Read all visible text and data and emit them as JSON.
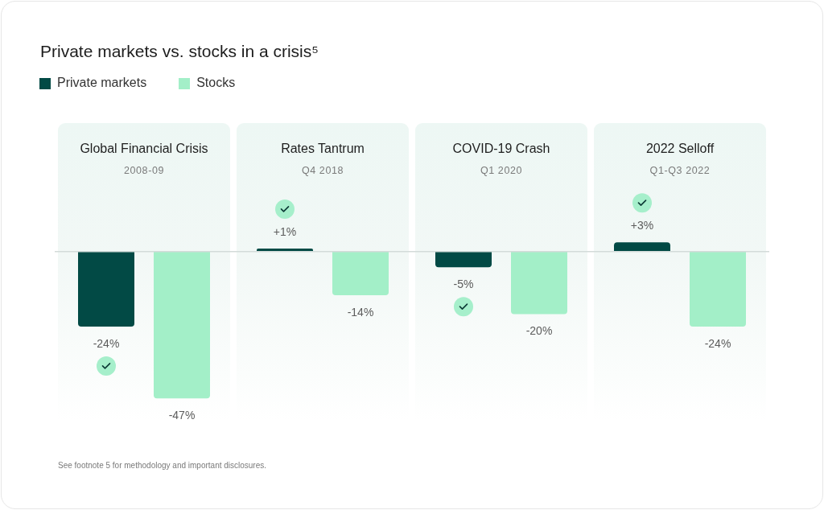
{
  "chart_data": {
    "type": "bar",
    "title": "Private markets vs. stocks in a crisis⁵",
    "categories": [
      "Global Financial Crisis",
      "Rates Tantrum",
      "COVID-19 Crash",
      "2022 Selloff"
    ],
    "series": [
      {
        "name": "Private markets",
        "color": "#024a45",
        "values": [
          -24,
          1,
          -5,
          3
        ],
        "value_labels": [
          "-24%",
          "+1%",
          "-5%",
          "+3%"
        ]
      },
      {
        "name": "Stocks",
        "color": "#a3efc8",
        "values": [
          -47,
          -14,
          -20,
          -24
        ],
        "value_labels": [
          "-47%",
          "-14%",
          "-20%",
          "-24%"
        ]
      }
    ],
    "ref_lines": [
      {
        "axis": "y",
        "value": 0,
        "color": "#d3dbd9"
      }
    ],
    "legend": "top left",
    "annotations": [
      "2008-09",
      "Q4 2018",
      "Q1 2020",
      "Q1-Q3 2022",
      "See footnote 5 for methodology and important disclosures."
    ]
  }
}
